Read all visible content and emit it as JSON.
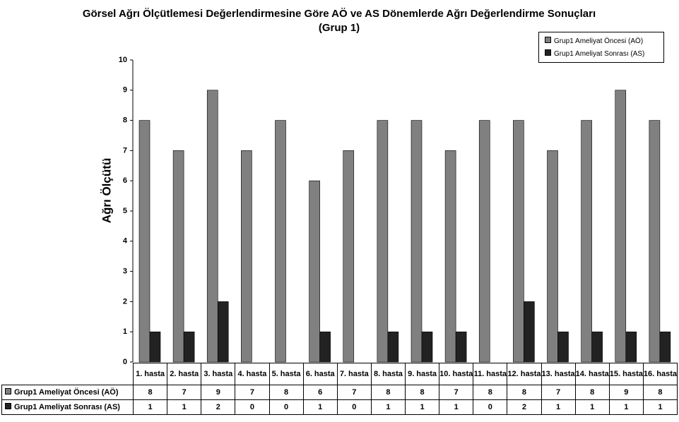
{
  "chart_data": {
    "type": "bar",
    "title": "Görsel Ağrı Ölçütlemesi Değerlendirmesine Göre AÖ ve AS Dönemlerde Ağrı Değerlendirme Sonuçları (Grup 1)",
    "y_label": "Ağrı Ölçütü",
    "categories": [
      "1. hasta",
      "2. hasta",
      "3. hasta",
      "4. hasta",
      "5. hasta",
      "6. hasta",
      "7. hasta",
      "8. hasta",
      "9. hasta",
      "10. hasta",
      "11. hasta",
      "12. hasta",
      "13. hasta",
      "14. hasta",
      "15. hasta",
      "16. hasta"
    ],
    "series": [
      {
        "name": "Grup1 Ameliyat Öncesi (AÖ)",
        "color": "#808080",
        "values": [
          8,
          7,
          9,
          7,
          8,
          6,
          7,
          8,
          8,
          7,
          8,
          8,
          7,
          8,
          9,
          8
        ]
      },
      {
        "name": "Grup1 Ameliyat Sonrası (AS)",
        "color": "#222222",
        "values": [
          1,
          1,
          2,
          0,
          0,
          1,
          0,
          1,
          1,
          1,
          0,
          2,
          1,
          1,
          1,
          1
        ]
      }
    ],
    "ylim": [
      0,
      10
    ],
    "yticks": [
      0,
      1,
      2,
      3,
      4,
      5,
      6,
      7,
      8,
      9,
      10
    ],
    "grid": false,
    "legend": "top-right"
  }
}
